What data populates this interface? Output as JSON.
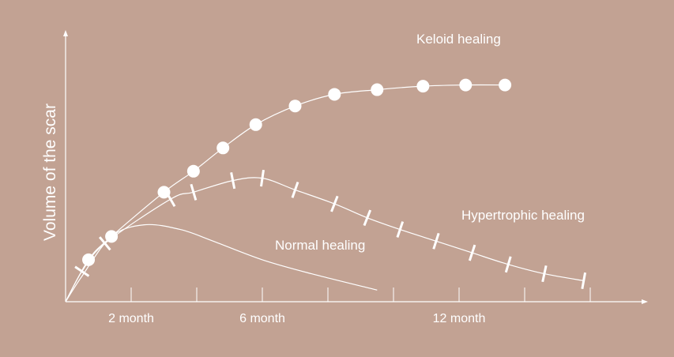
{
  "colors": {
    "background": "#c2a293",
    "foreground": "#ffffff"
  },
  "chart_data": {
    "type": "line",
    "title": "",
    "xlabel": "",
    "ylabel": "Volume of the scar",
    "x_tick_labels": [
      {
        "x": 2,
        "label": "2 month"
      },
      {
        "x": 6,
        "label": "6 month"
      },
      {
        "x": 12,
        "label": "12 month"
      }
    ],
    "x_ticks": [
      2,
      4,
      6,
      8,
      10,
      12,
      14,
      16
    ],
    "xlim": [
      0,
      17.6
    ],
    "ylim": [
      0,
      100
    ],
    "grid": false,
    "legend": "none",
    "series": [
      {
        "name": "Keloid healing",
        "marker": "circle",
        "points": [
          [
            0,
            0
          ],
          [
            0.7,
            18
          ],
          [
            1.4,
            28
          ],
          [
            3.0,
            47
          ],
          [
            3.9,
            56
          ],
          [
            4.8,
            66
          ],
          [
            5.8,
            76
          ],
          [
            7.0,
            84
          ],
          [
            8.2,
            89
          ],
          [
            9.5,
            91
          ],
          [
            10.9,
            92.5
          ],
          [
            12.2,
            93
          ],
          [
            13.4,
            93
          ]
        ]
      },
      {
        "name": "Hypertrophic healing",
        "marker": "dash",
        "points": [
          [
            0,
            0
          ],
          [
            0.5,
            13
          ],
          [
            1.2,
            25
          ],
          [
            3.2,
            44
          ],
          [
            3.9,
            47
          ],
          [
            5.1,
            52
          ],
          [
            6.0,
            53
          ],
          [
            7.0,
            48
          ],
          [
            8.2,
            42
          ],
          [
            9.2,
            36
          ],
          [
            10.2,
            31
          ],
          [
            11.3,
            26
          ],
          [
            12.4,
            21
          ],
          [
            13.5,
            16
          ],
          [
            14.6,
            12
          ],
          [
            15.8,
            9
          ]
        ]
      },
      {
        "name": "Normal healing",
        "marker": "none",
        "points": [
          [
            0,
            0
          ],
          [
            0.5,
            11
          ],
          [
            1.4,
            28
          ],
          [
            2.4,
            33
          ],
          [
            3.5,
            31
          ],
          [
            4.5,
            26
          ],
          [
            6.0,
            18
          ],
          [
            7.5,
            12
          ],
          [
            9.5,
            5
          ]
        ]
      }
    ],
    "series_labels": [
      {
        "series": "Keloid healing",
        "text": "Keloid healing"
      },
      {
        "series": "Hypertrophic healing",
        "text": "Hypertrophic healing"
      },
      {
        "series": "Normal healing",
        "text": "Normal healing"
      }
    ]
  }
}
